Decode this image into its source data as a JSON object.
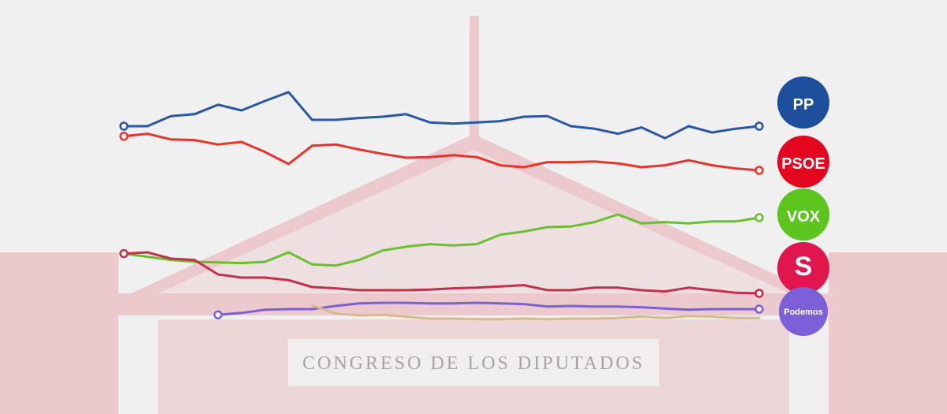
{
  "chart_data": {
    "type": "line",
    "x": [
      0,
      1,
      2,
      3,
      4,
      5,
      6,
      7,
      8,
      9,
      10,
      11,
      12,
      13,
      14,
      15,
      16,
      17,
      18,
      19,
      20,
      21,
      22,
      23,
      24,
      25,
      26,
      27
    ],
    "xlim": [
      0,
      27
    ],
    "ylim": [
      0,
      40
    ],
    "series": [
      {
        "name": "PP",
        "color": "#2a57a5",
        "values": [
          32.5,
          32.5,
          34.1,
          34.4,
          35.9,
          35,
          36.5,
          37.9,
          33.5,
          33.5,
          33.8,
          34,
          34.4,
          33.1,
          32.9,
          33.1,
          33.3,
          34,
          34.1,
          32.5,
          32.1,
          31.3,
          32.3,
          30.6,
          32.5,
          31.5,
          32.1,
          32.5
        ]
      },
      {
        "name": "PSOE",
        "color": "#e8352b",
        "values": [
          30.9,
          31.3,
          30.4,
          30.3,
          29.6,
          30,
          28.4,
          26.5,
          29.4,
          29.6,
          28.8,
          28.1,
          27.5,
          27.6,
          27.9,
          27.6,
          26.3,
          26,
          26.8,
          26.8,
          26.9,
          26.6,
          26,
          26.3,
          27.1,
          26.3,
          25.8,
          25.5
        ]
      },
      {
        "name": "VOX",
        "color": "#6abf2e",
        "values": [
          12.3,
          11.8,
          11.3,
          11,
          10.9,
          10.8,
          11,
          12.5,
          10.6,
          10.4,
          11.3,
          12.8,
          13.4,
          13.8,
          13.6,
          13.8,
          15.3,
          15.8,
          16.5,
          16.6,
          17.3,
          18.5,
          17.1,
          17.3,
          17.1,
          17.4,
          17.4,
          18
        ]
      },
      {
        "name": "S",
        "color": "#c2304a",
        "values": [
          12.3,
          12.5,
          11.5,
          11.3,
          9,
          8.5,
          8.5,
          8.1,
          7,
          6.8,
          6.5,
          6.5,
          6.5,
          6.6,
          6.8,
          6.9,
          7.1,
          7.3,
          6.5,
          6.5,
          6.9,
          6.9,
          6.5,
          6.3,
          6.9,
          6.5,
          6.1,
          6
        ]
      },
      {
        "name": "Podemos",
        "color": "#7b60d8",
        "values": [
          null,
          null,
          null,
          null,
          2.6,
          2.9,
          3.4,
          3.5,
          3.5,
          4,
          4.4,
          4.5,
          4.5,
          4.4,
          4.4,
          4.5,
          4.4,
          4.3,
          3.9,
          4,
          3.9,
          3.9,
          3.8,
          3.6,
          3.4,
          3.5,
          3.5,
          3.5
        ]
      },
      {
        "color": "#d9b98a",
        "values": [
          null,
          null,
          null,
          null,
          null,
          null,
          null,
          null,
          4.1,
          2.8,
          2.5,
          2.6,
          2.3,
          2,
          2,
          1.9,
          1.9,
          2,
          1.9,
          2,
          2,
          2.1,
          2.3,
          2.1,
          2.4,
          2.3,
          2.1,
          2.1
        ]
      }
    ],
    "legend_colors": [
      "#1d4f9c",
      "#e4051e",
      "#5bc51e",
      "#e2164f",
      "#7b60d8"
    ]
  },
  "background": {
    "inscription": "CONGRESO DE LOS DIPUTADOS"
  }
}
